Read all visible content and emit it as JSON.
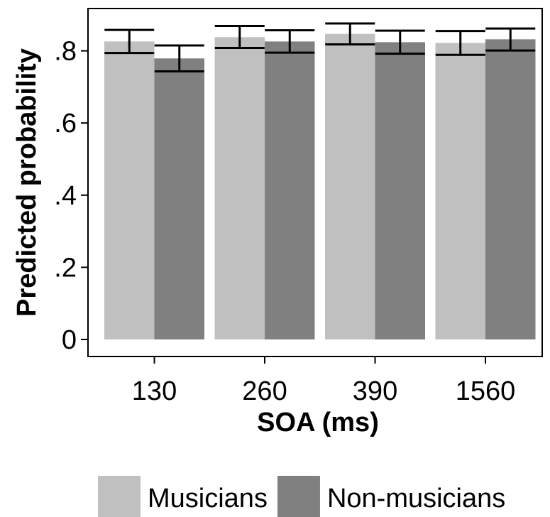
{
  "chart_data": {
    "type": "bar",
    "title": "",
    "xlabel": "SOA (ms)",
    "ylabel": "Predicted probability",
    "categories": [
      "130",
      "260",
      "390",
      "1560"
    ],
    "ylim": [
      0,
      0.9
    ],
    "yticks": [
      {
        "value": 0,
        "label": "0"
      },
      {
        "value": 0.2,
        "label": ".2"
      },
      {
        "value": 0.4,
        "label": ".4"
      },
      {
        "value": 0.6,
        "label": ".6"
      },
      {
        "value": 0.8,
        "label": ".8"
      }
    ],
    "series": [
      {
        "name": "Musicians",
        "color": "#c0c0c0",
        "values": [
          0.826,
          0.838,
          0.847,
          0.822
        ],
        "ci_low": [
          0.794,
          0.808,
          0.818,
          0.789
        ],
        "ci_high": [
          0.858,
          0.869,
          0.876,
          0.855
        ]
      },
      {
        "name": "Non-musicians",
        "color": "#808080",
        "values": [
          0.779,
          0.826,
          0.824,
          0.832
        ],
        "ci_low": [
          0.743,
          0.795,
          0.792,
          0.801
        ],
        "ci_high": [
          0.815,
          0.857,
          0.856,
          0.862
        ]
      }
    ],
    "legend": {
      "position": "bottom"
    },
    "grid": false
  }
}
